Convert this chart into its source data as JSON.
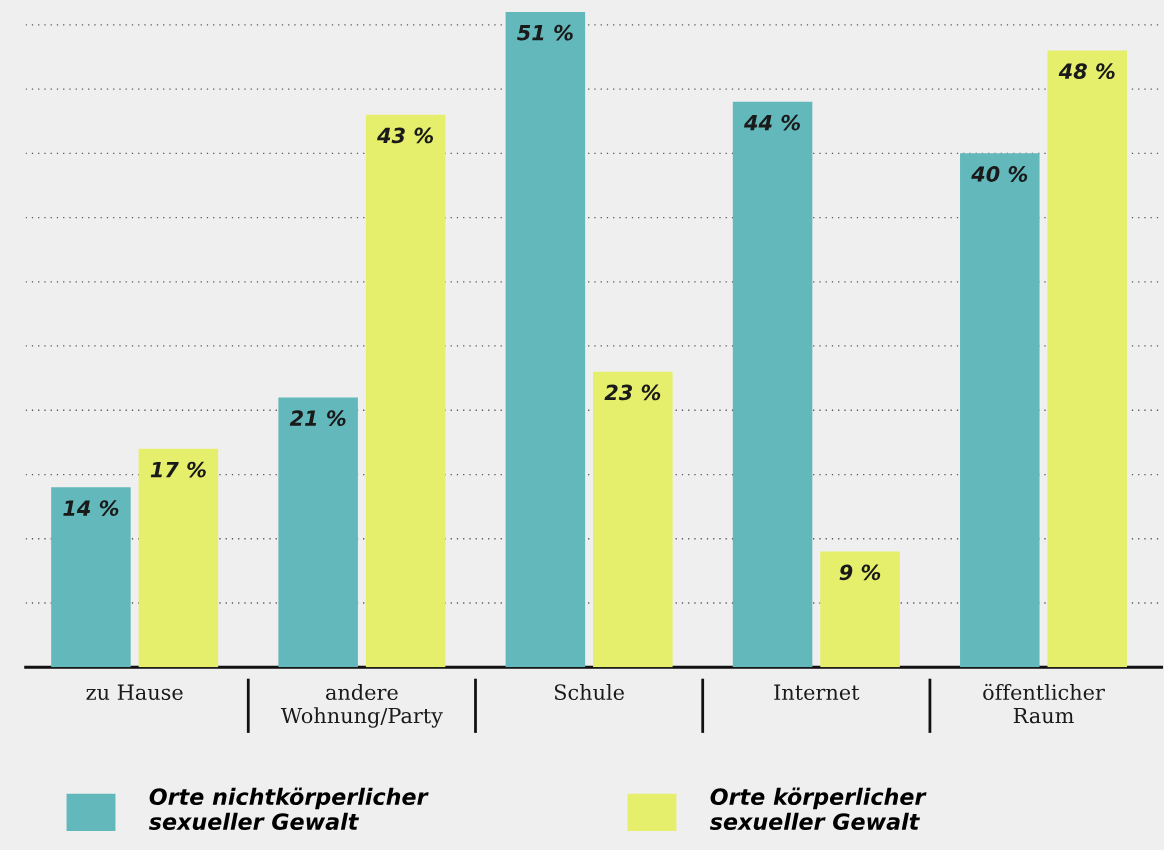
{
  "chart_data": {
    "type": "bar",
    "categories": [
      "zu Hause",
      "andere\nWohnung/Party",
      "Schule",
      "Internet",
      "öffentlicher\nRaum"
    ],
    "series": [
      {
        "name": "Orte nichtkörperlicher\nsexueller Gewalt",
        "color": "#63b8bb",
        "values": [
          14,
          21,
          51,
          44,
          40
        ],
        "value_labels": [
          "14 %",
          "21 %",
          "51 %",
          "44 %",
          "40 %"
        ]
      },
      {
        "name": "Orte körperlicher\nsexueller Gewalt",
        "color": "#e6ef6c",
        "values": [
          17,
          43,
          23,
          9,
          48
        ],
        "value_labels": [
          "17 %",
          "43 %",
          "23 %",
          "9 %",
          "48 %"
        ]
      }
    ],
    "ylim": [
      0,
      51
    ],
    "yticks": [
      {
        "value": 5,
        "label": null
      },
      {
        "value": 10,
        "label": null
      },
      {
        "value": 15,
        "label": null
      },
      {
        "value": 20,
        "label": null
      },
      {
        "value": 25,
        "label": null
      },
      {
        "value": 30,
        "label": null
      },
      {
        "value": 35,
        "label": null
      },
      {
        "value": 40,
        "label": null
      },
      {
        "value": 45,
        "label": null
      },
      {
        "value": 50,
        "label": null
      }
    ],
    "grid": "y",
    "legend": "bottom",
    "tick_labels": "x"
  }
}
